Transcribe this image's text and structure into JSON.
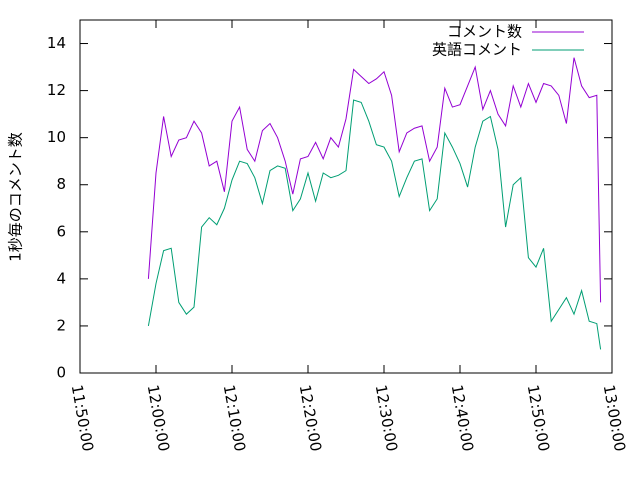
{
  "chart_data": {
    "type": "line",
    "ylabel": "1秒毎のコメント数",
    "x": [
      "11:59:00",
      "12:00:00",
      "12:01:00",
      "12:02:00",
      "12:03:00",
      "12:04:00",
      "12:05:00",
      "12:06:00",
      "12:07:00",
      "12:08:00",
      "12:09:00",
      "12:10:00",
      "12:11:00",
      "12:12:00",
      "12:13:00",
      "12:14:00",
      "12:15:00",
      "12:16:00",
      "12:17:00",
      "12:18:00",
      "12:19:00",
      "12:20:00",
      "12:21:00",
      "12:22:00",
      "12:23:00",
      "12:24:00",
      "12:25:00",
      "12:26:00",
      "12:27:00",
      "12:28:00",
      "12:29:00",
      "12:30:00",
      "12:31:00",
      "12:32:00",
      "12:33:00",
      "12:34:00",
      "12:35:00",
      "12:36:00",
      "12:37:00",
      "12:38:00",
      "12:39:00",
      "12:40:00",
      "12:41:00",
      "12:42:00",
      "12:43:00",
      "12:44:00",
      "12:45:00",
      "12:46:00",
      "12:47:00",
      "12:48:00",
      "12:49:00",
      "12:50:00",
      "12:51:00",
      "12:52:00",
      "12:53:00",
      "12:54:00",
      "12:55:00",
      "12:56:00",
      "12:57:00",
      "12:58:00",
      "12:58:30"
    ],
    "series": [
      {
        "name": "コメント数",
        "color": "#9400d3",
        "values": [
          4,
          8.5,
          10.9,
          9.2,
          9.9,
          10.0,
          10.7,
          10.2,
          8.8,
          9.0,
          7.7,
          10.7,
          11.3,
          9.5,
          9.0,
          10.3,
          10.6,
          10.0,
          9.0,
          7.6,
          9.1,
          9.2,
          9.8,
          9.1,
          10.0,
          9.6,
          10.8,
          12.9,
          12.6,
          12.3,
          12.5,
          12.8,
          11.8,
          9.4,
          10.2,
          10.4,
          10.5,
          9.0,
          9.6,
          12.1,
          11.3,
          11.4,
          12.2,
          13.0,
          11.2,
          12.0,
          11.0,
          10.5,
          12.2,
          11.3,
          12.3,
          11.5,
          12.3,
          12.2,
          11.8,
          10.6,
          13.4,
          12.2,
          11.7,
          11.8,
          3
        ]
      },
      {
        "name": "英語コメント",
        "color": "#009e73",
        "values": [
          2.0,
          3.8,
          5.2,
          5.3,
          3.0,
          2.5,
          2.8,
          6.2,
          6.6,
          6.3,
          7.0,
          8.2,
          9.0,
          8.9,
          8.3,
          7.2,
          8.6,
          8.8,
          8.7,
          6.9,
          7.4,
          8.5,
          7.3,
          8.5,
          8.3,
          8.4,
          8.6,
          11.6,
          11.5,
          10.7,
          9.7,
          9.6,
          9.0,
          7.5,
          8.3,
          9.0,
          9.1,
          6.9,
          7.4,
          10.2,
          9.6,
          8.9,
          7.9,
          9.6,
          10.7,
          10.9,
          9.5,
          6.2,
          8.0,
          8.3,
          4.9,
          4.5,
          5.3,
          2.2,
          2.7,
          3.2,
          2.5,
          3.5,
          2.2,
          2.1,
          1.0
        ]
      }
    ],
    "xlim": [
      "11:50:00",
      "13:00:00"
    ],
    "xticks": [
      "11:50:00",
      "12:00:00",
      "12:10:00",
      "12:20:00",
      "12:30:00",
      "12:40:00",
      "12:50:00",
      "13:00:00"
    ],
    "ylim": [
      0,
      15
    ],
    "yticks": [
      0,
      2,
      4,
      6,
      8,
      10,
      12,
      14
    ],
    "legend": "top-right"
  }
}
